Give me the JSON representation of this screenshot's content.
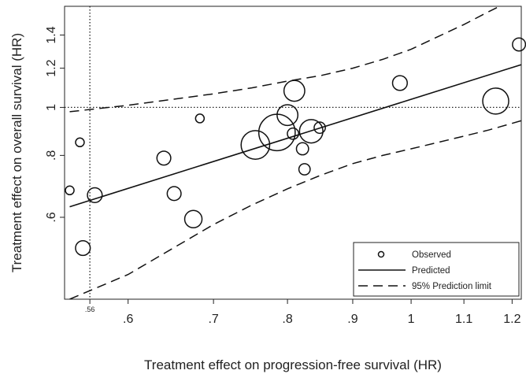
{
  "chart_data": {
    "type": "scatter",
    "xlabel": "Treatment effect on progression-free survival (HR)",
    "ylabel": "Treatment effect on overall survival (HR)",
    "x_scale": "log",
    "y_scale": "log",
    "xlim": [
      0.535,
      1.22
    ],
    "ylim": [
      0.41,
      1.6
    ],
    "x_ticks": [
      {
        "value": 0.56,
        "label": ".56"
      },
      {
        "value": 0.6,
        "label": ".6"
      },
      {
        "value": 0.7,
        "label": ".7"
      },
      {
        "value": 0.8,
        "label": ".8"
      },
      {
        "value": 0.9,
        "label": ".9"
      },
      {
        "value": 1.0,
        "label": "1"
      },
      {
        "value": 1.1,
        "label": "1.1"
      },
      {
        "value": 1.2,
        "label": "1.2"
      }
    ],
    "y_ticks": [
      {
        "value": 0.6,
        "label": ".6"
      },
      {
        "value": 0.8,
        "label": ".8"
      },
      {
        "value": 1.0,
        "label": "1"
      },
      {
        "value": 1.2,
        "label": "1.2"
      },
      {
        "value": 1.4,
        "label": "1.4"
      }
    ],
    "reference_lines": {
      "x": 0.56,
      "y": 1.0
    },
    "grid": false,
    "legend_position": "bottom-right",
    "series": [
      {
        "name": "Observed",
        "kind": "bubbles",
        "points": [
          {
            "x": 0.54,
            "y": 0.68,
            "size": 1.0
          },
          {
            "x": 0.55,
            "y": 0.85,
            "size": 1.0
          },
          {
            "x": 0.553,
            "y": 0.52,
            "size": 1.7
          },
          {
            "x": 0.565,
            "y": 0.665,
            "size": 1.7
          },
          {
            "x": 0.64,
            "y": 0.79,
            "size": 1.6
          },
          {
            "x": 0.652,
            "y": 0.67,
            "size": 1.6
          },
          {
            "x": 0.675,
            "y": 0.595,
            "size": 2.0
          },
          {
            "x": 0.683,
            "y": 0.95,
            "size": 1.0
          },
          {
            "x": 0.755,
            "y": 0.84,
            "size": 3.3
          },
          {
            "x": 0.785,
            "y": 0.89,
            "size": 4.2
          },
          {
            "x": 0.8,
            "y": 0.965,
            "size": 2.4
          },
          {
            "x": 0.808,
            "y": 0.885,
            "size": 1.3
          },
          {
            "x": 0.81,
            "y": 1.08,
            "size": 2.4
          },
          {
            "x": 0.822,
            "y": 0.825,
            "size": 1.4
          },
          {
            "x": 0.825,
            "y": 0.75,
            "size": 1.3
          },
          {
            "x": 0.835,
            "y": 0.895,
            "size": 2.7
          },
          {
            "x": 0.848,
            "y": 0.91,
            "size": 1.3
          },
          {
            "x": 0.98,
            "y": 1.12,
            "size": 1.7
          },
          {
            "x": 1.165,
            "y": 1.03,
            "size": 3.0
          },
          {
            "x": 1.215,
            "y": 1.34,
            "size": 1.5
          }
        ]
      },
      {
        "name": "Predicted",
        "kind": "line",
        "style": "solid",
        "x": [
          0.54,
          1.22
        ],
        "y": [
          0.63,
          1.22
        ]
      },
      {
        "name": "95% Prediction limit",
        "kind": "line",
        "style": "dashed",
        "upper": {
          "x": [
            0.54,
            0.6,
            0.7,
            0.75,
            0.8,
            0.85,
            0.9,
            0.95,
            1.0,
            1.05,
            1.1,
            1.15,
            1.22
          ],
          "y": [
            0.98,
            1.01,
            1.065,
            1.095,
            1.13,
            1.16,
            1.2,
            1.25,
            1.31,
            1.39,
            1.47,
            1.56,
            1.68
          ]
        },
        "lower": {
          "x": [
            0.54,
            0.6,
            0.7,
            0.75,
            0.8,
            0.85,
            0.9,
            0.95,
            1.0,
            1.05,
            1.1,
            1.15,
            1.22
          ],
          "y": [
            0.41,
            0.46,
            0.58,
            0.635,
            0.685,
            0.73,
            0.77,
            0.8,
            0.825,
            0.85,
            0.875,
            0.9,
            0.94
          ]
        }
      }
    ]
  }
}
